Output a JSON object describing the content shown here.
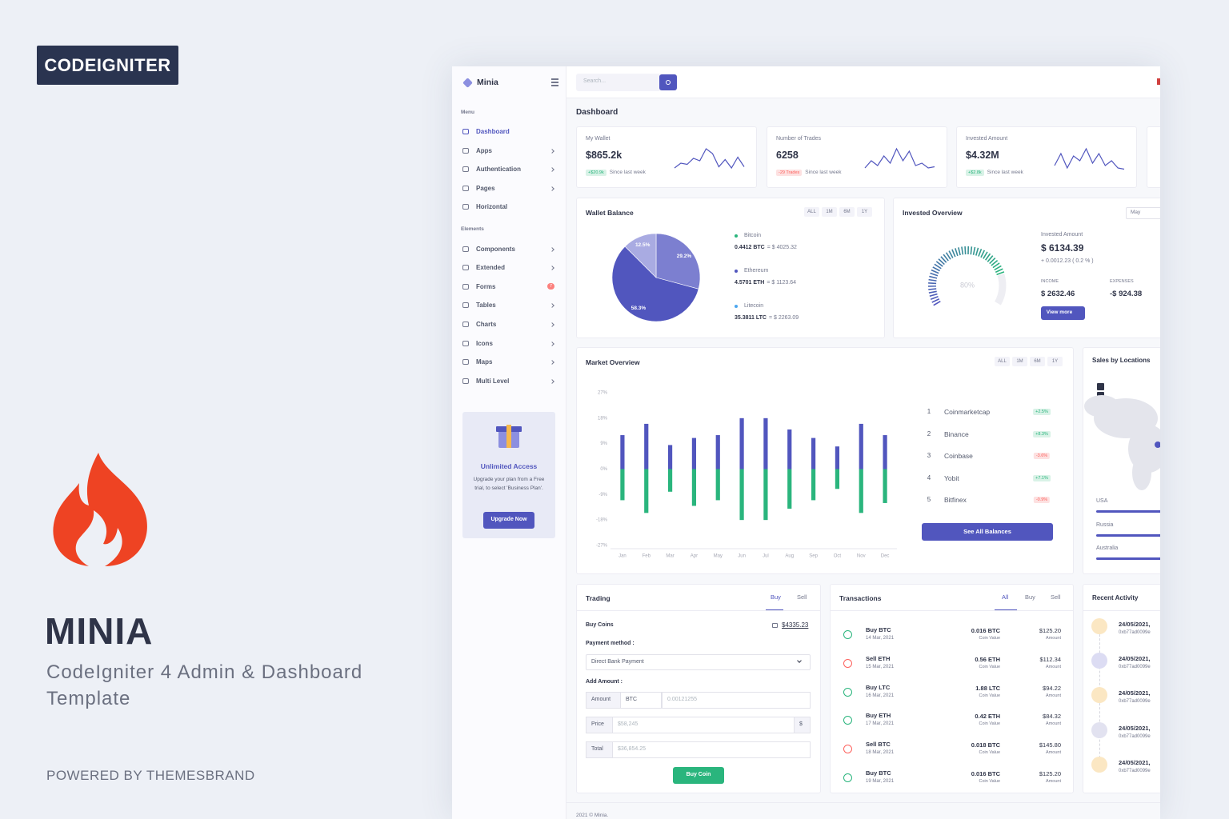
{
  "banner": {
    "badge": "CODEIGNITER",
    "name": "MINIA",
    "subtitle": "CodeIgniter 4 Admin & Dashboard Template",
    "powered": "POWERED BY THEMESBRAND"
  },
  "sidebar": {
    "brand": "Minia",
    "menu_heading": "Menu",
    "menu": [
      "Dashboard",
      "Apps",
      "Authentication",
      "Pages",
      "Horizontal"
    ],
    "elements_heading": "Elements",
    "elements": [
      "Components",
      "Extended",
      "Forms",
      "Tables",
      "Charts",
      "Icons",
      "Maps",
      "Multi Level"
    ],
    "forms_badge": "7",
    "promo": {
      "title": "Unlimited Access",
      "text": "Upgrade your plan from a Free trial, to select 'Business Plan'.",
      "button": "Upgrade Now"
    }
  },
  "header": {
    "search_placeholder": "Search...",
    "page_title": "Dashboard"
  },
  "stats": [
    {
      "label": "My Wallet",
      "value": "$865.2k",
      "change": "+$20.9k",
      "note": "Since last week"
    },
    {
      "label": "Number of Trades",
      "value": "6258",
      "change": "-29 Trades",
      "note": "Since last week"
    },
    {
      "label": "Invested Amount",
      "value": "$4.32M",
      "change": "+$2.8k",
      "note": "Since last week"
    }
  ],
  "wallet": {
    "filters": [
      "ALL",
      "1M",
      "6M",
      "1Y"
    ],
    "coins": [
      {
        "name": "Bitcoin",
        "amount": "0.4412 BTC",
        "value": "= $ 4025.32"
      },
      {
        "name": "Ethereum",
        "amount": "4.5701 ETH",
        "value": "= $ 1123.64"
      },
      {
        "name": "Litecoin",
        "amount": "35.3811 LTC",
        "value": "= $ 2263.09"
      }
    ]
  },
  "invested": {
    "title": "Invested Overview",
    "select": "May",
    "amount_label": "Invested Amount",
    "amount": "$ 6134.39",
    "change": "+ 0.0012.23 ( 0.2 % )",
    "income_label": "INCOME",
    "income": "$ 2632.46",
    "expenses_label": "EXPENSES",
    "expenses": "-$ 924.38",
    "button": "View more"
  },
  "market": {
    "filters": [
      "ALL",
      "1M",
      "6M",
      "1Y"
    ],
    "ranking": [
      {
        "rank": "1",
        "name": "Coinmarketcap",
        "change": "+2.5%"
      },
      {
        "rank": "2",
        "name": "Binance",
        "change": "+8.3%"
      },
      {
        "rank": "3",
        "name": "Coinbase",
        "change": "-3.6%"
      },
      {
        "rank": "4",
        "name": "Yobit",
        "change": "+7.1%"
      },
      {
        "rank": "5",
        "name": "Bitfinex",
        "change": "-0.9%"
      }
    ],
    "button": "See All Balances"
  },
  "locations": {
    "title": "Sales by Locations",
    "countries": [
      "USA",
      "Russia",
      "Australia"
    ]
  },
  "trading": {
    "title": "Trading",
    "tabs": [
      "Buy",
      "Sell"
    ],
    "buy_coins": "Buy Coins",
    "balance": "$4335.23",
    "payment_label": "Payment method :",
    "payment": "Direct Bank Payment",
    "amount_heading": "Add Amount :",
    "amount_label": "Amount",
    "coin": "BTC",
    "amount_placeholder": "0.00121255",
    "price_label": "Price",
    "price": "$58,245",
    "price_unit": "$",
    "total_label": "Total",
    "total": "$36,854.25",
    "button": "Buy Coin"
  },
  "transactions": {
    "title": "Transactions",
    "tabs": [
      "All",
      "Buy",
      "Sell"
    ],
    "rows": [
      {
        "title": "Buy BTC",
        "date": "14 Mar, 2021",
        "coins": "0.016 BTC",
        "coins_label": "Coin Value",
        "amount": "$125.20",
        "amount_label": "Amount"
      },
      {
        "title": "Sell ETH",
        "date": "15 Mar, 2021",
        "coins": "0.56 ETH",
        "coins_label": "Coin Value",
        "amount": "$112.34",
        "amount_label": "Amount"
      },
      {
        "title": "Buy LTC",
        "date": "16 Mar, 2021",
        "coins": "1.88 LTC",
        "coins_label": "Coin Value",
        "amount": "$94.22",
        "amount_label": "Amount"
      },
      {
        "title": "Buy ETH",
        "date": "17 Mar, 2021",
        "coins": "0.42 ETH",
        "coins_label": "Coin Value",
        "amount": "$84.32",
        "amount_label": "Amount"
      },
      {
        "title": "Sell BTC",
        "date": "18 Mar, 2021",
        "coins": "0.018 BTC",
        "coins_label": "Coin Value",
        "amount": "$145.80",
        "amount_label": "Amount"
      },
      {
        "title": "Buy BTC",
        "date": "19 Mar, 2021",
        "coins": "0.016 BTC",
        "coins_label": "Coin Value",
        "amount": "$125.20",
        "amount_label": "Amount"
      }
    ]
  },
  "activity": {
    "title": "Recent Activity",
    "rows": [
      {
        "date": "24/05/2021,",
        "hash": "0xb77ad0099e"
      },
      {
        "date": "24/05/2021,",
        "hash": "0xb77ad0099e"
      },
      {
        "date": "24/05/2021,",
        "hash": "0xb77ad0099e"
      },
      {
        "date": "24/05/2021,",
        "hash": "0xb77ad0099e"
      },
      {
        "date": "24/05/2021,",
        "hash": "0xb77ad0099e"
      }
    ]
  },
  "footer": "2021 © Minia.",
  "chart_data": [
    {
      "type": "pie",
      "title": "Wallet Balance",
      "values": [
        29.2,
        58.3,
        12.5
      ],
      "value_labels": [
        "29.2%",
        "58.3%",
        "12.5%"
      ],
      "colors": [
        "#7c7fd0",
        "#5156be",
        "#a9abe2"
      ]
    },
    {
      "type": "gauge",
      "values": [
        80
      ],
      "value_labels": [
        "80%"
      ],
      "ylim": [
        0,
        100
      ],
      "colors": [
        "#5156be",
        "#2ab57d"
      ]
    },
    {
      "type": "bar",
      "title": "Market Overview",
      "categories": [
        "Jan",
        "Feb",
        "Mar",
        "Apr",
        "May",
        "Jun",
        "Jul",
        "Aug",
        "Sep",
        "Oct",
        "Nov",
        "Dec"
      ],
      "series": [
        {
          "color": "#5156be",
          "values": [
            12,
            16,
            8.5,
            11,
            12,
            18,
            18,
            14,
            11,
            8,
            16,
            12
          ]
        },
        {
          "color": "#2ab57d",
          "values": [
            -11,
            -15.5,
            -8,
            -13,
            -11,
            -18,
            -18,
            -14,
            -11,
            -7,
            -15.5,
            -12
          ]
        }
      ],
      "ylim": [
        -27,
        27
      ],
      "yticks": [
        {
          "value": -27,
          "label": "-27%"
        },
        {
          "value": -18,
          "label": "-18%"
        },
        {
          "value": -9,
          "label": "-9%"
        },
        {
          "value": 0,
          "label": "0%"
        },
        {
          "value": 9,
          "label": "9%"
        },
        {
          "value": 18,
          "label": "18%"
        },
        {
          "value": 27,
          "label": "27%"
        }
      ]
    }
  ]
}
